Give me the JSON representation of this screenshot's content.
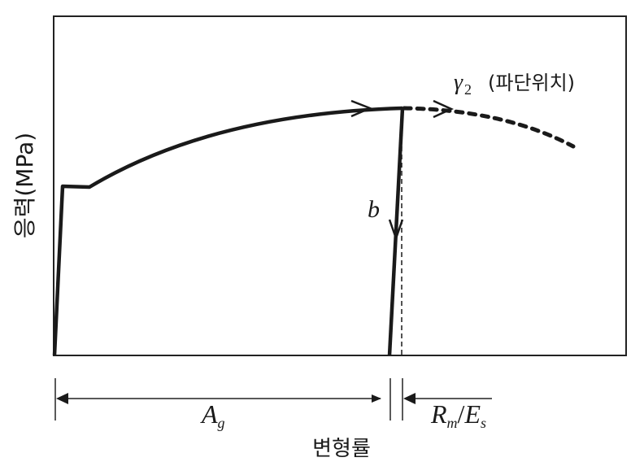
{
  "y_axis_label": "응력(MPa)",
  "y_axis_label_parts": {
    "korean": "응력",
    "unit": "(MPa)"
  },
  "x_axis_label": "변형률",
  "annotations": {
    "fracture_symbol": "γ",
    "fracture_subscript": "2",
    "fracture_text": "(파단위치)",
    "unloading_label": "b",
    "uniform_elongation": {
      "main": "A",
      "sub": "g"
    },
    "elastic_recovery": {
      "R": "R",
      "m": "m",
      "slash": "/",
      "E": "E",
      "s": "s"
    }
  },
  "colors": {
    "line": "#1a1a1a",
    "background": "#ffffff"
  }
}
